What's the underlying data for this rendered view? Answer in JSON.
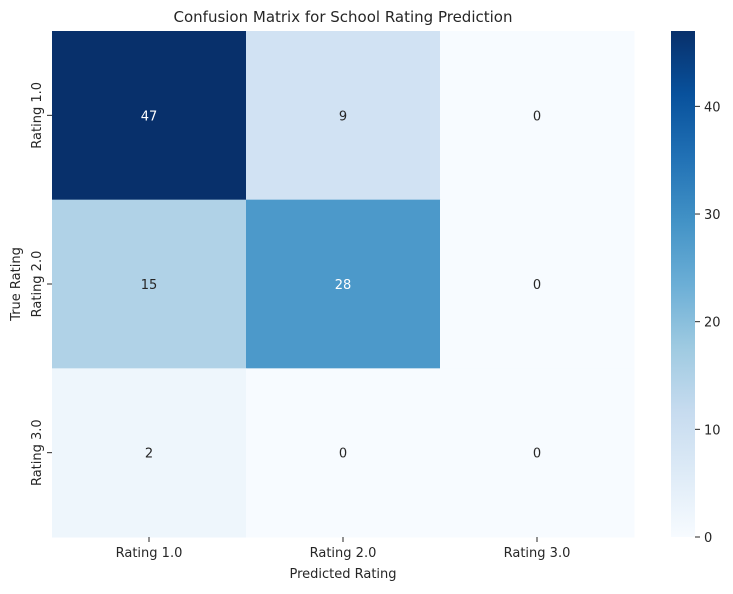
{
  "chart_data": {
    "type": "heatmap",
    "title": "Confusion Matrix for School Rating Prediction",
    "xlabel": "Predicted Rating",
    "ylabel": "True Rating",
    "x_categories": [
      "Rating 1.0",
      "Rating 2.0",
      "Rating 3.0"
    ],
    "y_categories": [
      "Rating 1.0",
      "Rating 2.0",
      "Rating 3.0"
    ],
    "values": [
      [
        47,
        9,
        0
      ],
      [
        15,
        28,
        0
      ],
      [
        2,
        0,
        0
      ]
    ],
    "colorbar": {
      "range": [
        0,
        47
      ],
      "ticks": [
        0,
        10,
        20,
        30,
        40
      ],
      "colormap": "Blues",
      "colors": [
        "#f7fbff",
        "#deebf7",
        "#c6dbef",
        "#9ecae1",
        "#6baed6",
        "#4292c6",
        "#2171b5",
        "#08519c",
        "#08306b"
      ]
    },
    "annotated": true
  }
}
